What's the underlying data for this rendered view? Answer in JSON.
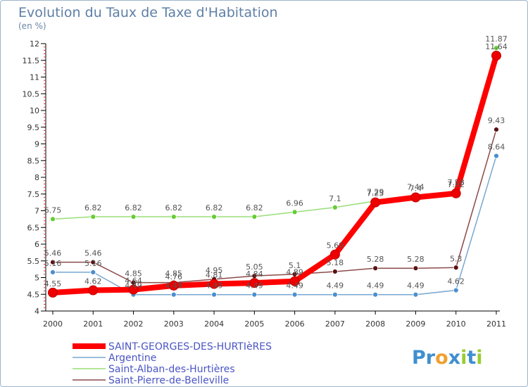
{
  "chart_data": {
    "type": "line",
    "title": "Evolution du Taux de Taxe d'Habitation",
    "ylabel": "(en %)",
    "xlabel": "",
    "categories": [
      "2000",
      "2001",
      "2002",
      "2003",
      "2004",
      "2005",
      "2006",
      "2007",
      "2008",
      "2009",
      "2010",
      "2011"
    ],
    "ylim": [
      4,
      12
    ],
    "yticks": [
      4,
      4.5,
      5,
      5.5,
      6,
      6.5,
      7,
      7.5,
      8,
      8.5,
      9,
      9.5,
      10,
      10.5,
      11,
      11.5,
      12
    ],
    "ytick_labels": [
      "4",
      "4.5",
      "5",
      "5.5",
      "6",
      "6.5",
      "7",
      "7.5",
      "8",
      "8.5",
      "9",
      "9.5",
      "10",
      "10.5",
      "11",
      "11.5",
      "12"
    ],
    "grid": false,
    "legend_position": "bottom-left",
    "series": [
      {
        "name": "SAINT-GEORGES-DES-HURTIèRES",
        "color": "#ff0000",
        "marker_color": "#ee0000",
        "values": [
          4.55,
          4.62,
          4.64,
          4.76,
          4.81,
          4.84,
          4.89,
          5.69,
          7.25,
          7.4,
          7.52,
          11.64
        ],
        "labels": [
          "4.55",
          "4.62",
          "4.64",
          "4.76",
          "4.81",
          "4.84",
          "4.89",
          "5.69",
          "7.25",
          "7.4",
          "7.52",
          "11.64"
        ]
      },
      {
        "name": "Argentine",
        "color": "#78a8d0",
        "marker_color": "#4a8fd0",
        "values": [
          5.16,
          5.16,
          4.49,
          4.49,
          4.49,
          4.49,
          4.49,
          4.49,
          4.49,
          4.49,
          4.62,
          8.64
        ],
        "labels": [
          "5.16",
          "5.16",
          "4.49",
          "4.49",
          "4.49",
          "4.49",
          "4.49",
          "4.49",
          "4.49",
          "4.49",
          "4.62",
          "8.64"
        ]
      },
      {
        "name": "Saint-Alban-des-Hurtières",
        "color": "#99dd77",
        "marker_color": "#66cc33",
        "values": [
          6.75,
          6.82,
          6.82,
          6.82,
          6.82,
          6.82,
          6.96,
          7.1,
          7.29,
          7.44,
          7.58,
          11.87
        ],
        "labels": [
          "6.75",
          "6.82",
          "6.82",
          "6.82",
          "6.82",
          "6.82",
          "6.96",
          "7.1",
          "7.29",
          "7.44",
          "7.58",
          "11.87"
        ]
      },
      {
        "name": "Saint-Pierre-de-Belleville",
        "color": "#8b4a4a",
        "marker_color": "#5a1212",
        "values": [
          5.46,
          5.46,
          4.85,
          4.85,
          4.95,
          5.05,
          5.1,
          5.18,
          5.28,
          5.28,
          5.3,
          9.43
        ],
        "labels": [
          "5.46",
          "5.46",
          "4.85",
          "4.85",
          "4.95",
          "5.05",
          "5.1",
          "5.18",
          "5.28",
          "5.28",
          "5.3",
          "9.43"
        ]
      }
    ]
  },
  "brand": {
    "letters": [
      "P",
      "r",
      "o",
      "x",
      "i",
      "t",
      "i"
    ],
    "colors": [
      "#3f8fd0",
      "#3f8fd0",
      "#f0a030",
      "#3f8fd0",
      "#99cc33",
      "#3f8fd0",
      "#99cc33"
    ]
  }
}
